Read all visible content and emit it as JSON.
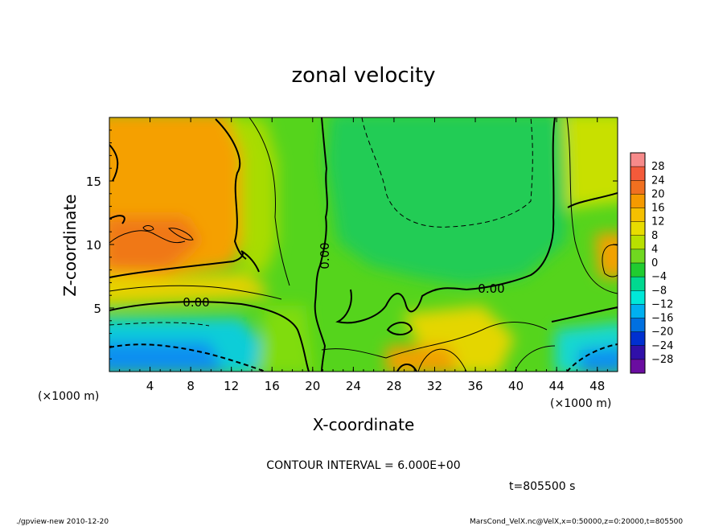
{
  "chart_data": {
    "type": "heatmap",
    "title": "zonal velocity",
    "xlabel": "X-coordinate",
    "ylabel": "Z-coordinate",
    "x_unit_left": "(×1000 m)",
    "x_unit_right": "(×1000 m)",
    "xlim": [
      0,
      50
    ],
    "ylim": [
      0,
      20
    ],
    "x_ticks": [
      4,
      8,
      12,
      16,
      20,
      24,
      28,
      32,
      36,
      40,
      44,
      48
    ],
    "y_ticks": [
      5,
      10,
      15
    ],
    "contour_interval_text": "CONTOUR INTERVAL = 6.000E+00",
    "contour_label": "0.00",
    "time_text": "t=805500 s",
    "colorbar_levels": [
      28,
      24,
      20,
      16,
      12,
      8,
      4,
      0,
      -4,
      -8,
      -12,
      -16,
      -20,
      -24,
      -28
    ],
    "colorbar_colors": [
      "#f68a8a",
      "#f35a3a",
      "#f07020",
      "#f59a00",
      "#f5c000",
      "#e8dc00",
      "#b8e000",
      "#70d820",
      "#20cc30",
      "#00d890",
      "#00e8d8",
      "#00b0f0",
      "#0070e0",
      "#0030d0",
      "#3010a8",
      "#6a0da0"
    ],
    "footer_left": "./gpview-new  2010-12-20",
    "footer_right": "MarsCond_VelX.nc@VelX,x=0:50000,z=0:20000,t=805500"
  }
}
